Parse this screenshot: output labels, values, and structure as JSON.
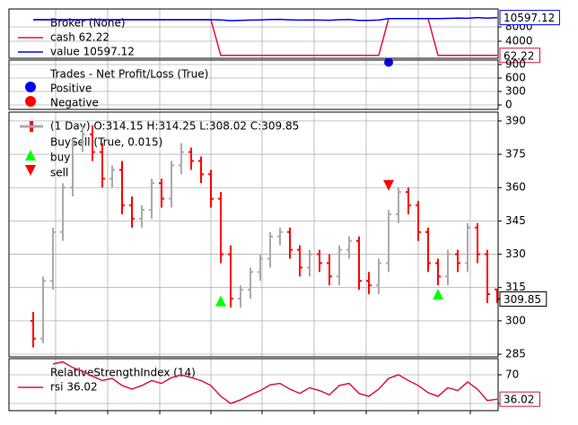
{
  "chart_data": [
    {
      "type": "line",
      "title": "Broker (None)",
      "ylim": [
        -750,
        13000
      ],
      "yticks": [
        4000,
        8000
      ],
      "grid": true,
      "series": [
        {
          "name": "cash 62.22",
          "color": "#dc143c",
          "values": [
            10000,
            10000,
            10000,
            10000,
            10000,
            10000,
            10000,
            10000,
            10000,
            10000,
            10000,
            10000,
            10000,
            10000,
            10000,
            10000,
            10000,
            10000,
            10000,
            62.22,
            62.22,
            62.22,
            62.22,
            62.22,
            62.22,
            62.22,
            62.22,
            62.22,
            62.22,
            62.22,
            62.22,
            62.22,
            62.22,
            62.22,
            62.22,
            62.22,
            10320,
            10320,
            10320,
            10320,
            10320,
            62.22,
            62.22,
            62.22,
            62.22,
            62.22,
            62.22,
            62.22
          ]
        },
        {
          "name": "value 10597.12",
          "color": "#0000ff",
          "values": [
            10000,
            10000,
            10000,
            10000,
            10000,
            10000,
            10000,
            10000,
            10000,
            10000,
            10000,
            10000,
            10000,
            10000,
            10000,
            10000,
            10000,
            10000,
            10000,
            9950,
            9750,
            9800,
            9900,
            9950,
            10050,
            10080,
            9980,
            9900,
            9950,
            9920,
            9850,
            10000,
            10050,
            9820,
            9800,
            9920,
            10320,
            10320,
            10320,
            10320,
            10320,
            10320,
            10380,
            10460,
            10420,
            10600,
            10450,
            10597.12
          ]
        }
      ]
    },
    {
      "type": "scatter",
      "title": "Trades - Net Profit/Loss (True)",
      "ylim": [
        -100,
        1000
      ],
      "yticks": [
        0,
        300,
        600,
        900
      ],
      "grid": true,
      "series": [
        {
          "name": "Positive",
          "color": "#0000ff",
          "values": [
            null,
            null,
            null,
            null,
            null,
            null,
            null,
            null,
            null,
            null,
            null,
            null,
            null,
            null,
            null,
            null,
            null,
            null,
            null,
            null,
            null,
            null,
            null,
            null,
            null,
            null,
            null,
            null,
            null,
            null,
            null,
            null,
            null,
            null,
            null,
            null,
            950,
            null,
            null,
            null,
            null,
            null,
            null,
            null,
            null,
            null,
            null,
            null
          ]
        },
        {
          "name": "Negative",
          "color": "#ff0000",
          "values": [
            null,
            null,
            null,
            null,
            null,
            null,
            null,
            null,
            null,
            null,
            null,
            null,
            null,
            null,
            null,
            null,
            null,
            null,
            null,
            null,
            null,
            null,
            null,
            null,
            null,
            null,
            null,
            null,
            null,
            null,
            null,
            null,
            null,
            null,
            null,
            null,
            null,
            null,
            null,
            null,
            null,
            null,
            null,
            null,
            null,
            null,
            null,
            null
          ]
        }
      ]
    },
    {
      "type": "ohlc",
      "title": "(1 Day) O:314.15 H:314.25 L:308.02 C:309.85",
      "subtitle": "BuySell (True, 0.015)",
      "ylim": [
        283.8,
        394
      ],
      "yticks": [
        285,
        300,
        315,
        330,
        345,
        360,
        375,
        390
      ],
      "grid": true,
      "up_color": "#aaaaaa",
      "down_color": "#ff0000",
      "open": [
        300,
        292,
        318,
        340,
        360,
        380,
        384,
        376,
        364,
        368,
        352,
        346,
        350,
        362,
        355,
        370,
        376,
        372,
        366,
        355,
        330,
        310,
        314,
        322,
        328,
        338,
        340,
        332,
        324,
        330,
        326,
        320,
        332,
        336,
        318,
        316,
        326,
        348,
        358,
        352,
        340,
        326,
        320,
        330,
        326,
        342,
        330,
        314.15
      ],
      "high": [
        304,
        320,
        342,
        362,
        382,
        388,
        388,
        380,
        370,
        372,
        356,
        352,
        364,
        364,
        372,
        380,
        378,
        374,
        368,
        358,
        334,
        316,
        324,
        330,
        340,
        342,
        342,
        334,
        332,
        332,
        330,
        334,
        338,
        338,
        322,
        328,
        350,
        360,
        360,
        354,
        342,
        328,
        332,
        332,
        344,
        344,
        332,
        314.25
      ],
      "low": [
        288,
        290,
        314,
        336,
        356,
        376,
        372,
        360,
        360,
        348,
        342,
        342,
        346,
        351,
        351,
        366,
        368,
        362,
        351,
        326,
        306,
        306,
        310,
        318,
        324,
        334,
        328,
        320,
        320,
        322,
        316,
        316,
        328,
        314,
        312,
        312,
        322,
        344,
        348,
        336,
        322,
        316,
        316,
        322,
        322,
        326,
        308,
        308.02
      ],
      "close": [
        292,
        318,
        340,
        360,
        380,
        384,
        376,
        364,
        368,
        352,
        346,
        350,
        362,
        355,
        370,
        376,
        372,
        366,
        355,
        330,
        310,
        314,
        322,
        328,
        338,
        340,
        332,
        324,
        330,
        326,
        320,
        332,
        336,
        318,
        316,
        326,
        348,
        358,
        352,
        340,
        326,
        320,
        330,
        326,
        342,
        330,
        312,
        309.85
      ],
      "series": [
        {
          "name": "buy",
          "color": "#00ff00",
          "marker": "^",
          "values": [
            null,
            null,
            null,
            null,
            null,
            null,
            null,
            null,
            null,
            null,
            null,
            null,
            null,
            null,
            null,
            null,
            null,
            null,
            null,
            309,
            null,
            null,
            null,
            null,
            null,
            null,
            null,
            null,
            null,
            null,
            null,
            null,
            null,
            null,
            null,
            null,
            null,
            null,
            null,
            null,
            null,
            312,
            null,
            null,
            null,
            null,
            null,
            null
          ]
        },
        {
          "name": "sell",
          "color": "#ff0000",
          "marker": "v",
          "values": [
            null,
            null,
            null,
            null,
            null,
            null,
            null,
            null,
            null,
            null,
            null,
            null,
            null,
            null,
            null,
            null,
            null,
            null,
            null,
            null,
            null,
            null,
            null,
            null,
            null,
            null,
            null,
            null,
            null,
            null,
            null,
            null,
            null,
            null,
            null,
            null,
            361,
            null,
            null,
            null,
            null,
            null,
            null,
            null,
            null,
            null,
            null,
            null
          ]
        }
      ]
    },
    {
      "type": "line",
      "title": "RelativeStrengthIndex (14)",
      "ylim": [
        20,
        92.5
      ],
      "yticks": [
        30,
        70
      ],
      "grid": true,
      "series": [
        {
          "name": "rsi 36.02",
          "color": "#dc143c",
          "values": [
            null,
            null,
            85,
            88,
            80,
            75,
            68,
            62,
            65,
            55,
            50,
            55,
            62,
            58,
            66,
            70,
            66,
            62,
            55,
            40,
            30,
            35,
            42,
            48,
            56,
            58,
            50,
            44,
            52,
            48,
            42,
            55,
            58,
            44,
            40,
            50,
            65,
            70,
            62,
            55,
            45,
            40,
            52,
            48,
            60,
            50,
            34,
            36.02
          ]
        }
      ]
    }
  ]
}
